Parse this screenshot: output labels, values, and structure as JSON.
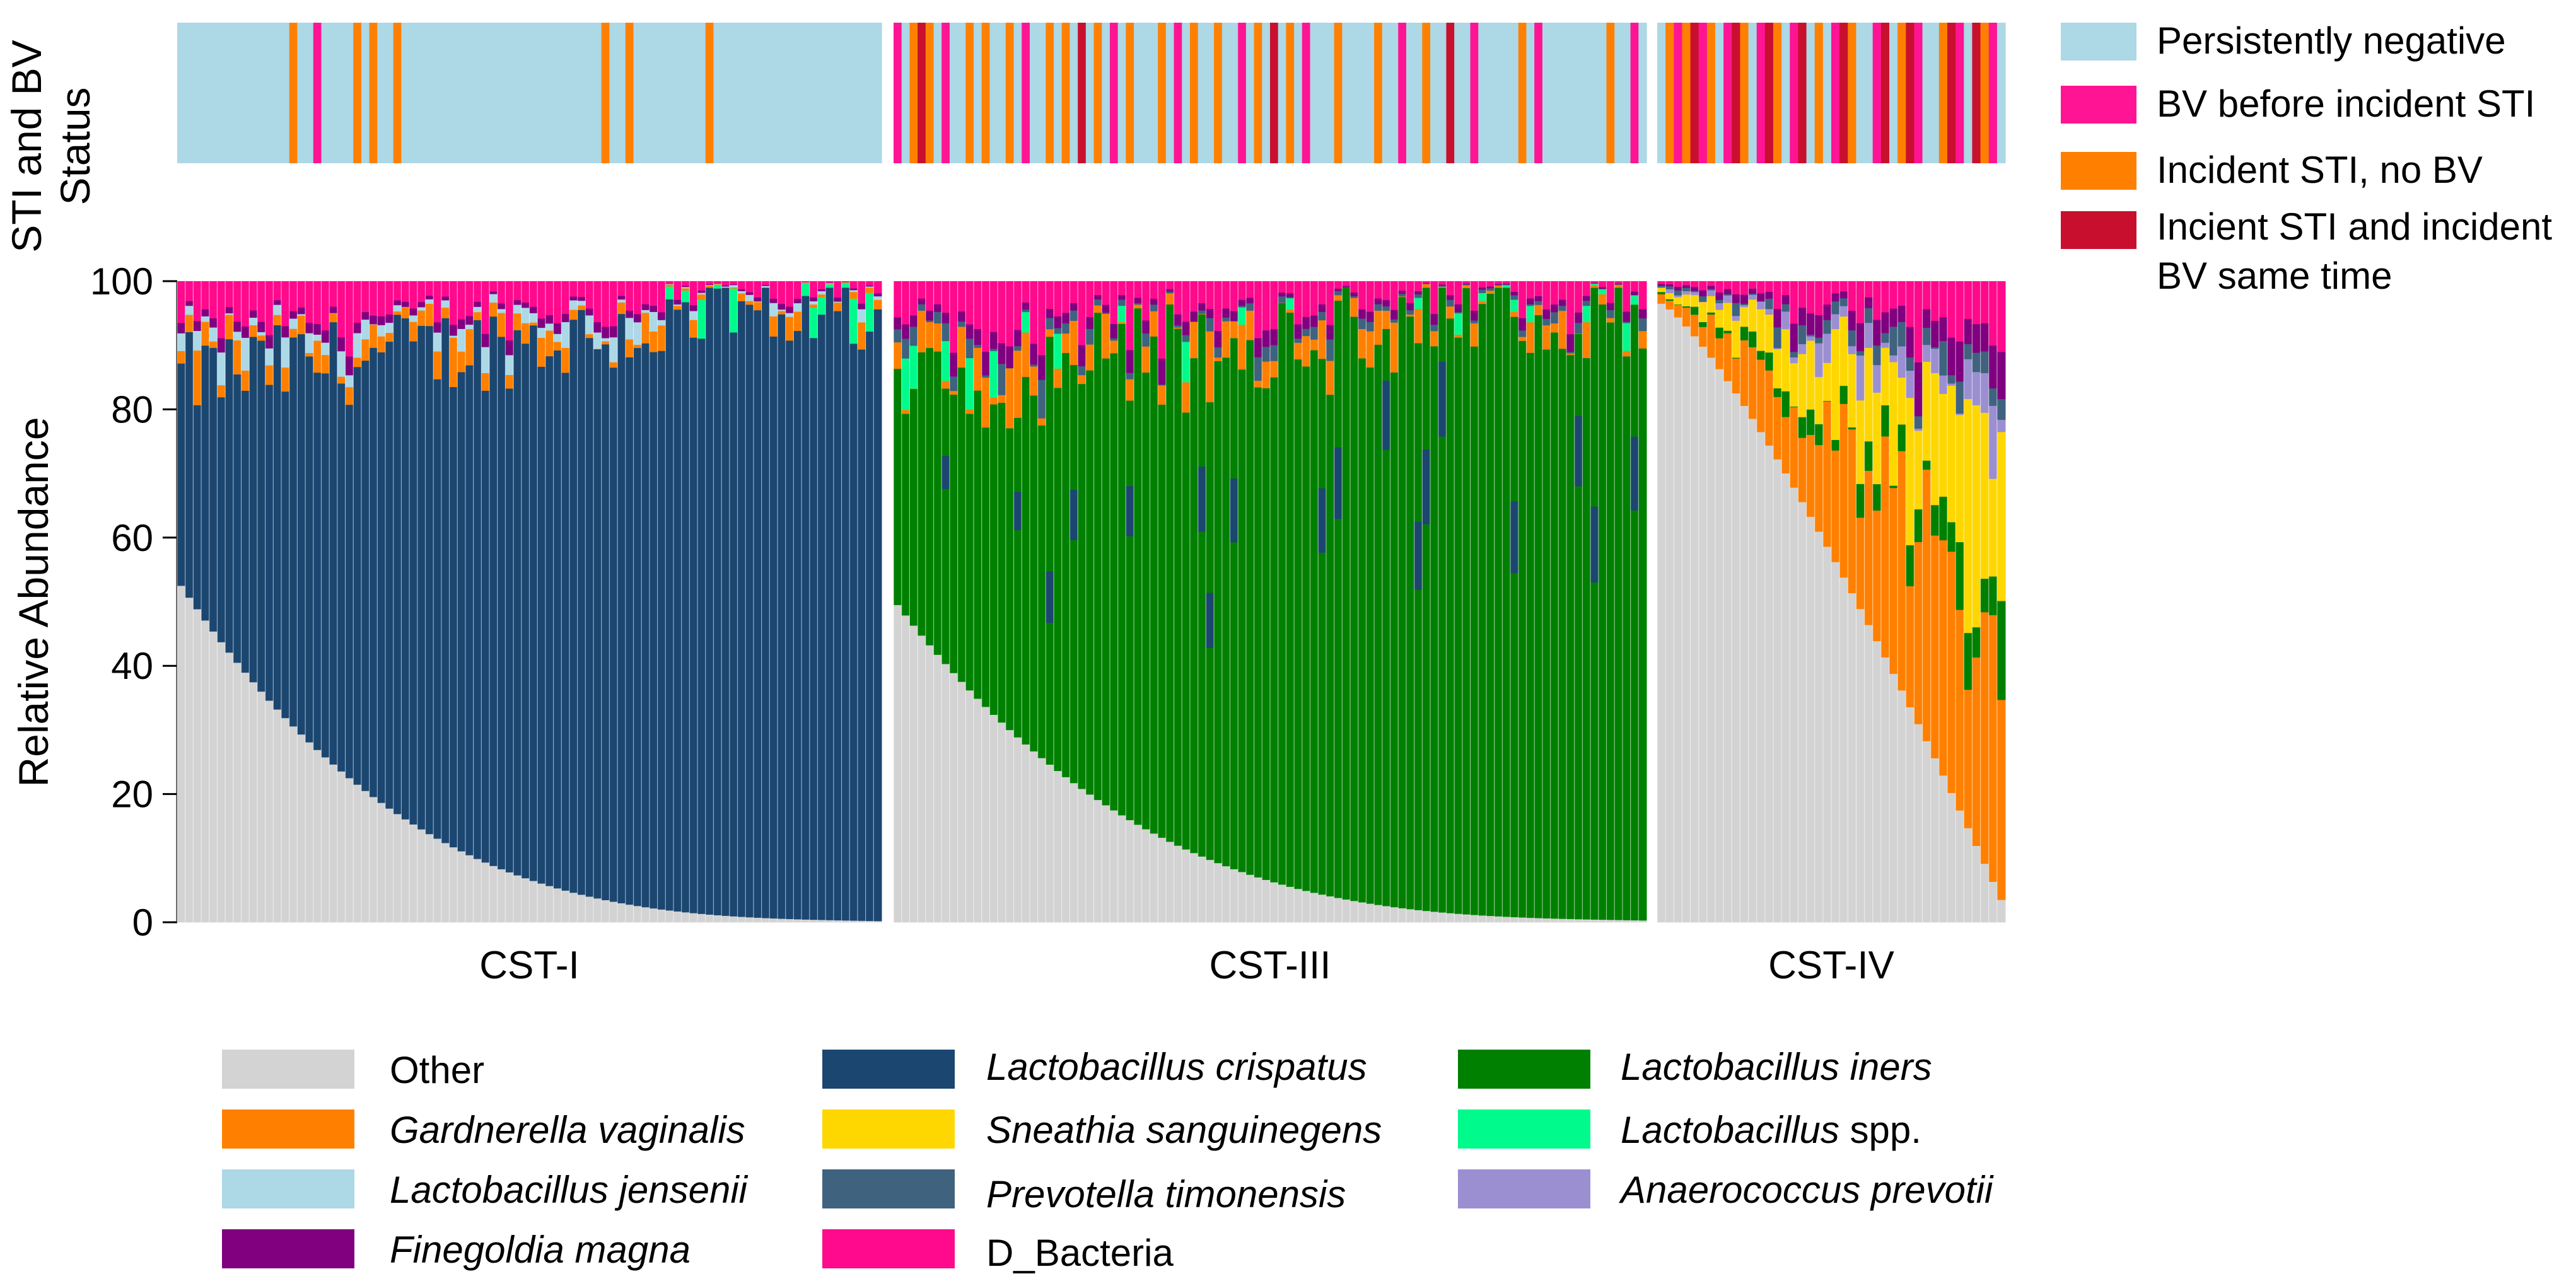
{
  "chart_data": {
    "type": "bar",
    "stacked": true,
    "status_strip": {
      "title_line1": "STI and BV",
      "title_line2": "Status",
      "legend": [
        {
          "label": "Persistently negative",
          "color": "#ADD8E6"
        },
        {
          "label": "BV before incident STI",
          "color": "#FF1493"
        },
        {
          "label": "Incident STI, no BV",
          "color": "#FF8000"
        },
        {
          "label": "Incient STI and incident BV same time",
          "line1": "Incient STI and incident",
          "line2": "BV same time",
          "color": "#C8102E"
        }
      ]
    },
    "ylabel": "Relative Abundance",
    "ylim": [
      0,
      100
    ],
    "yticks": [
      "0",
      "20",
      "40",
      "60",
      "80",
      "100"
    ],
    "panels": [
      {
        "name": "CST-I",
        "n_bars": 88,
        "dominant": "Lactobacillus crispatus",
        "other_start": 50.5,
        "other_end": 0.2,
        "dominant_top_start": 85,
        "dominant_top_end": 96,
        "status_events": {
          "Incident STI, no BV": [
            14,
            22,
            24,
            27,
            53,
            56,
            66
          ],
          "BV before incident STI": [
            17
          ]
        }
      },
      {
        "name": "CST-III",
        "n_bars": 94,
        "dominant": "Lactobacillus iners",
        "other_start": 47.5,
        "other_end": 0.3,
        "dominant_top_start": 83,
        "dominant_top_end": 97,
        "status_events": {
          "Incident STI, no BV": [
            2,
            4,
            9,
            11,
            14,
            19,
            21,
            25,
            29,
            33,
            37,
            40,
            45,
            49,
            55,
            60,
            66,
            78,
            89
          ],
          "BV before incident STI": [
            0,
            6,
            16,
            27,
            35,
            43,
            51,
            63,
            72,
            80,
            92
          ],
          "Incient STI and incident BV same time": [
            3,
            23,
            47,
            69
          ]
        }
      },
      {
        "name": "CST-IV",
        "n_bars": 42,
        "dominant": "mixed",
        "other_start": 96.5,
        "other_end": 3.5,
        "dominant_top_start": 0,
        "dominant_top_end": 0,
        "status_events": {
          "Incident STI, no BV": [
            1,
            3,
            6,
            10,
            14,
            19,
            23,
            29,
            34,
            39
          ],
          "BV before incident STI": [
            2,
            5,
            8,
            12,
            16,
            21,
            26,
            31,
            36,
            40
          ],
          "Incient STI and incident BV same time": [
            4,
            9,
            13,
            17,
            22,
            27,
            30,
            35,
            38
          ]
        }
      }
    ],
    "legend": [
      {
        "label": "Other",
        "color": "#D3D3D3",
        "italic": false
      },
      {
        "label": "Gardnerella vaginalis",
        "color": "#FF8000",
        "italic": true
      },
      {
        "label": "Lactobacillus jensenii",
        "color": "#ADD8E6",
        "italic": true
      },
      {
        "label": "Finegoldia magna",
        "color": "#800080",
        "italic": true
      },
      {
        "label": "Lactobacillus crispatus",
        "color": "#1B4670",
        "italic": true
      },
      {
        "label": "Sneathia sanguinegens",
        "color": "#FFD700",
        "italic": true
      },
      {
        "label": "Prevotella timonensis",
        "color": "#3F627F",
        "italic": true
      },
      {
        "label": "D_Bacteria",
        "color": "#FF0A8C",
        "italic": false
      },
      {
        "label": "Lactobacillus iners",
        "color": "#008000",
        "italic": true
      },
      {
        "label": "Lactobacillus spp.",
        "label_italic": "Lactobacillus",
        "label_rest": " spp.",
        "color": "#00FA8C",
        "italic": true
      },
      {
        "label": "Anaerococcus prevotii",
        "color": "#9B8FD2",
        "italic": true
      }
    ]
  }
}
